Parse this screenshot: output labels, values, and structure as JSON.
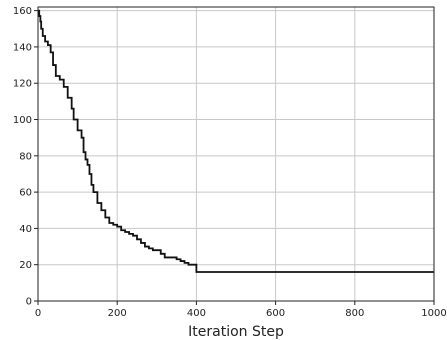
{
  "chart_data": {
    "type": "line",
    "title": "",
    "xlabel": "Iteration Step",
    "ylabel": "",
    "xlim": [
      0,
      1000
    ],
    "ylim": [
      0,
      162
    ],
    "xticks": [
      0,
      200,
      400,
      600,
      800,
      1000
    ],
    "yticks": [
      0,
      20,
      40,
      60,
      80,
      100,
      120,
      140,
      160
    ],
    "xtick_labels": [
      "0",
      "200",
      "400",
      "600",
      "800",
      "1000"
    ],
    "ytick_labels": [
      "0",
      "20",
      "40",
      "60",
      "80",
      "100",
      "120",
      "140",
      "160"
    ],
    "grid": true,
    "step": true,
    "line_color": "#111111",
    "series": [
      {
        "x": [
          0,
          3,
          6,
          8,
          12,
          18,
          25,
          32,
          38,
          45,
          55,
          65,
          75,
          85,
          90,
          100,
          110,
          115,
          120,
          125,
          130,
          135,
          140,
          150,
          160,
          170,
          180,
          190,
          200,
          210,
          220,
          230,
          240,
          250,
          260,
          270,
          280,
          290,
          300,
          310,
          320,
          330,
          340,
          350,
          360,
          370,
          380,
          390,
          400,
          1000
        ],
        "y": [
          160,
          157,
          154,
          150,
          146,
          143,
          141,
          137,
          130,
          124,
          122,
          118,
          112,
          106,
          100,
          94,
          90,
          82,
          78,
          75,
          70,
          64,
          60,
          54,
          50,
          46,
          43,
          42,
          41,
          39,
          38,
          37,
          36,
          34,
          32,
          30,
          29,
          28,
          28,
          26,
          24,
          24,
          24,
          23,
          22,
          21,
          20,
          20,
          16,
          16
        ]
      }
    ]
  }
}
